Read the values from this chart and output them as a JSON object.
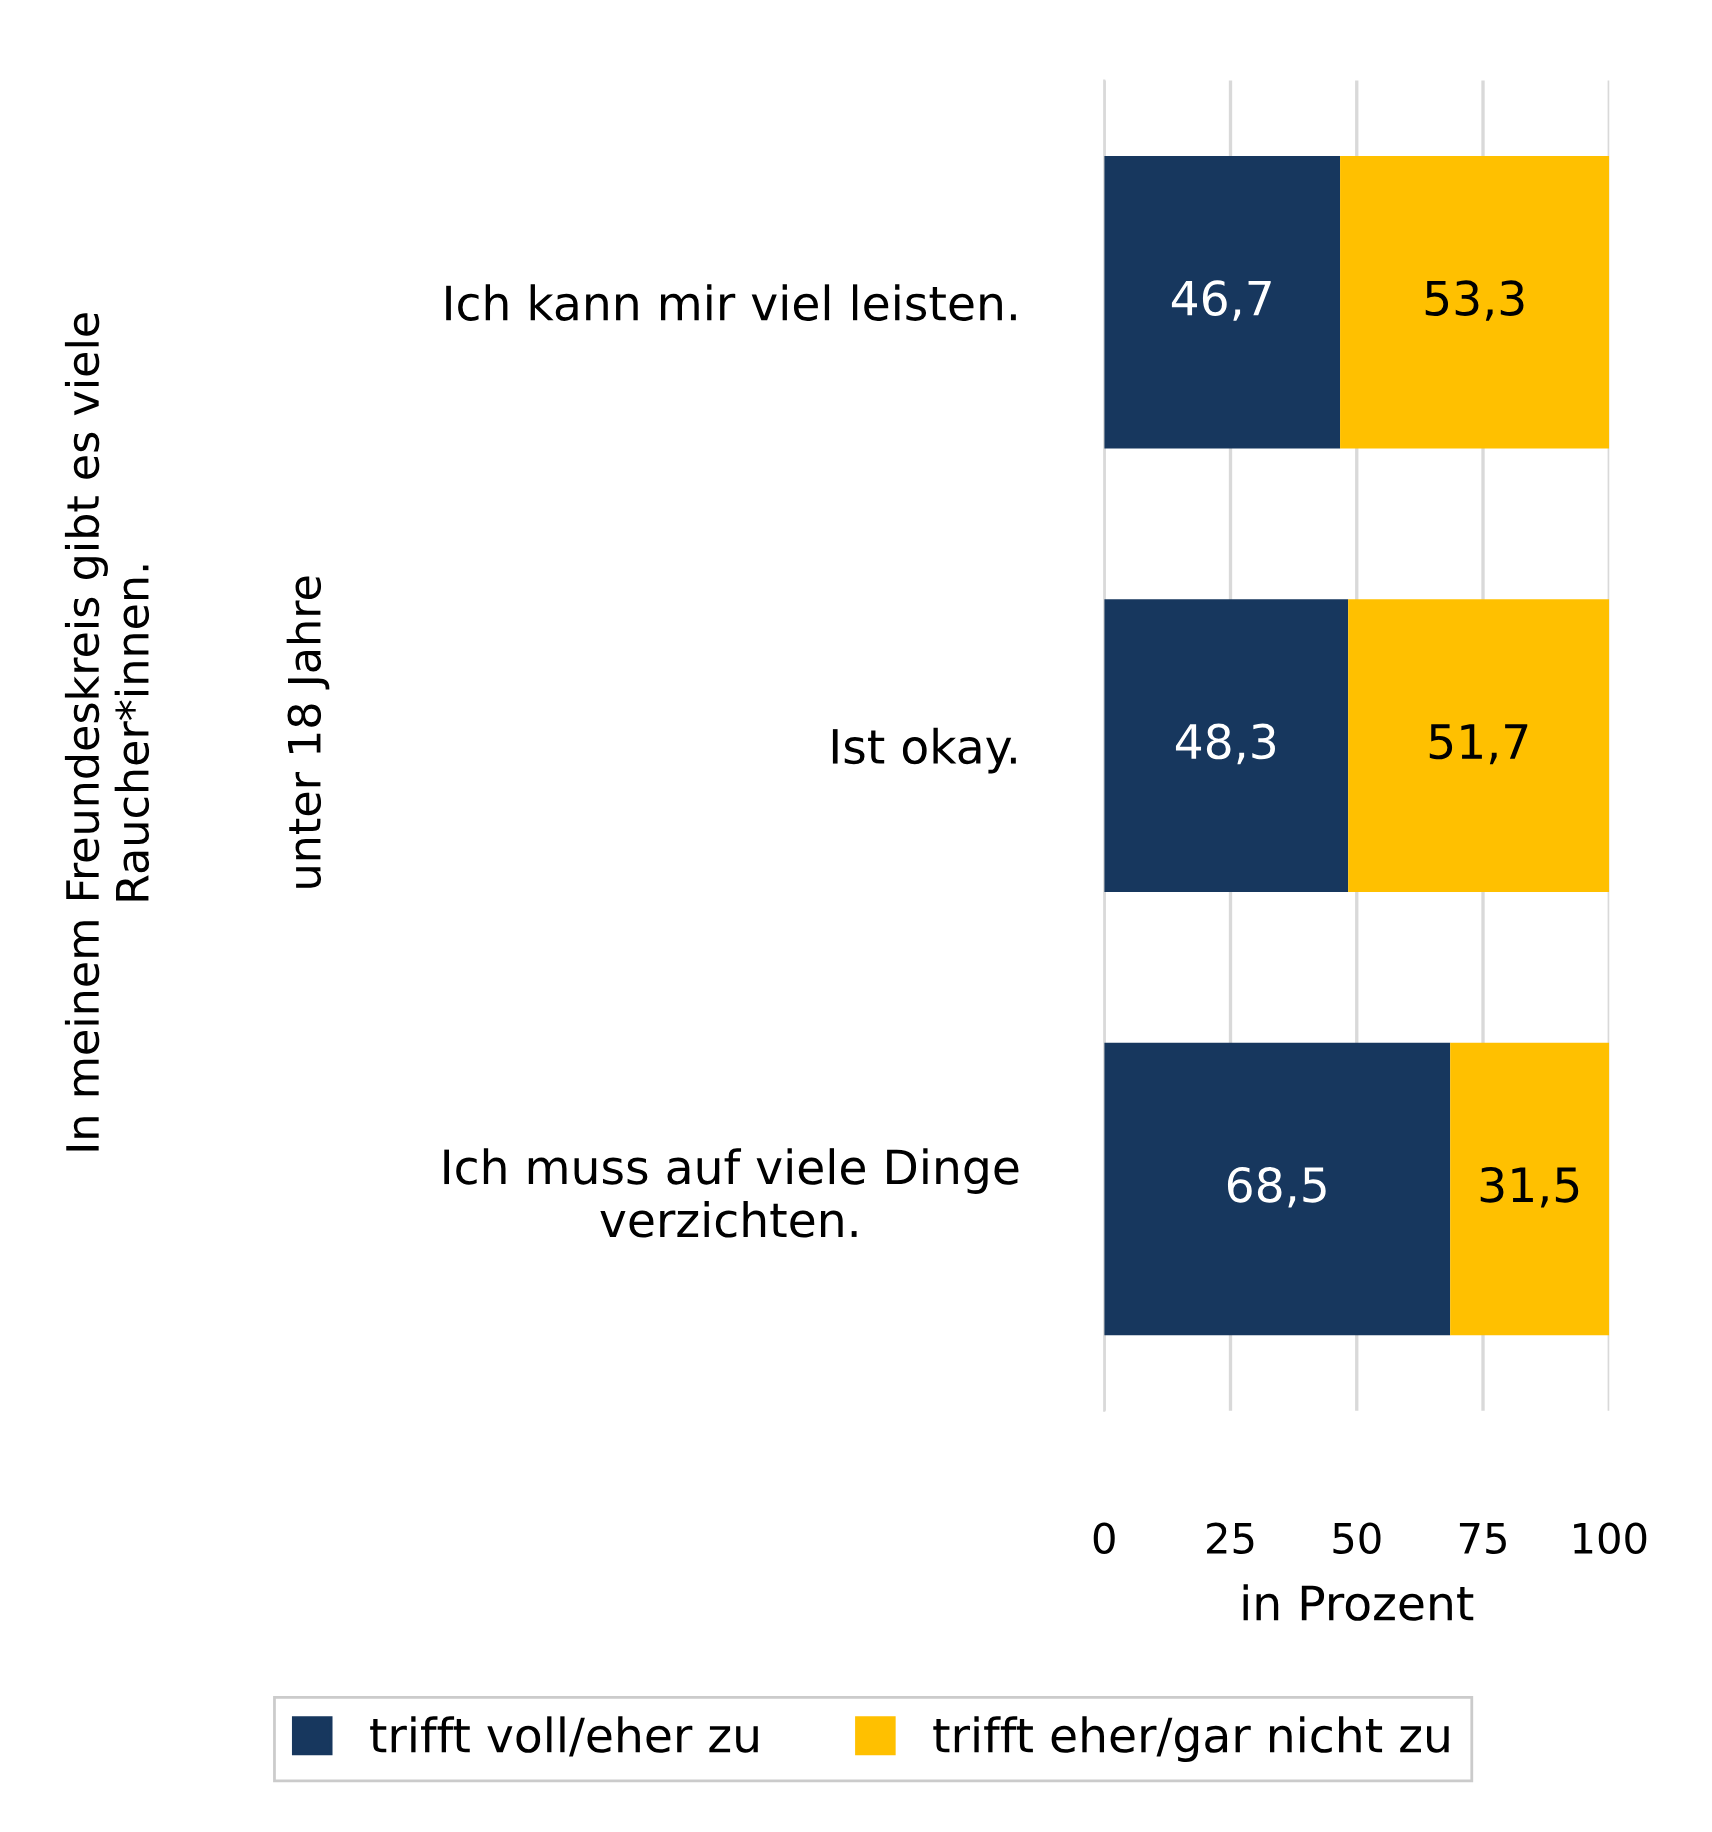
{
  "chart_data": {
    "type": "bar",
    "orientation": "horizontal",
    "stacked": true,
    "categories": [
      "Ich kann mir viel leisten.",
      "Ist okay.",
      "Ich muss auf viele Dinge\nverzichten."
    ],
    "series": [
      {
        "name": "trifft voll/eher zu",
        "color": "#17375e",
        "values": [
          46.7,
          48.3,
          68.5
        ],
        "value_labels": [
          "46,7",
          "48,3",
          "68,5"
        ]
      },
      {
        "name": "trifft eher/gar nicht zu",
        "color": "#ffc000",
        "values": [
          53.3,
          51.7,
          31.5
        ],
        "value_labels": [
          "53,3",
          "51,7",
          "31,5"
        ]
      }
    ],
    "xlim": [
      0,
      100
    ],
    "xticks": [
      0,
      25,
      50,
      75,
      100
    ],
    "grid": "x",
    "legend": "bottom",
    "xlabel": "in Prozent",
    "annotations": [
      "In meinem Freundeskreis gibt es viele\nRaucher*innen.",
      "unter 18 Jahre"
    ]
  }
}
